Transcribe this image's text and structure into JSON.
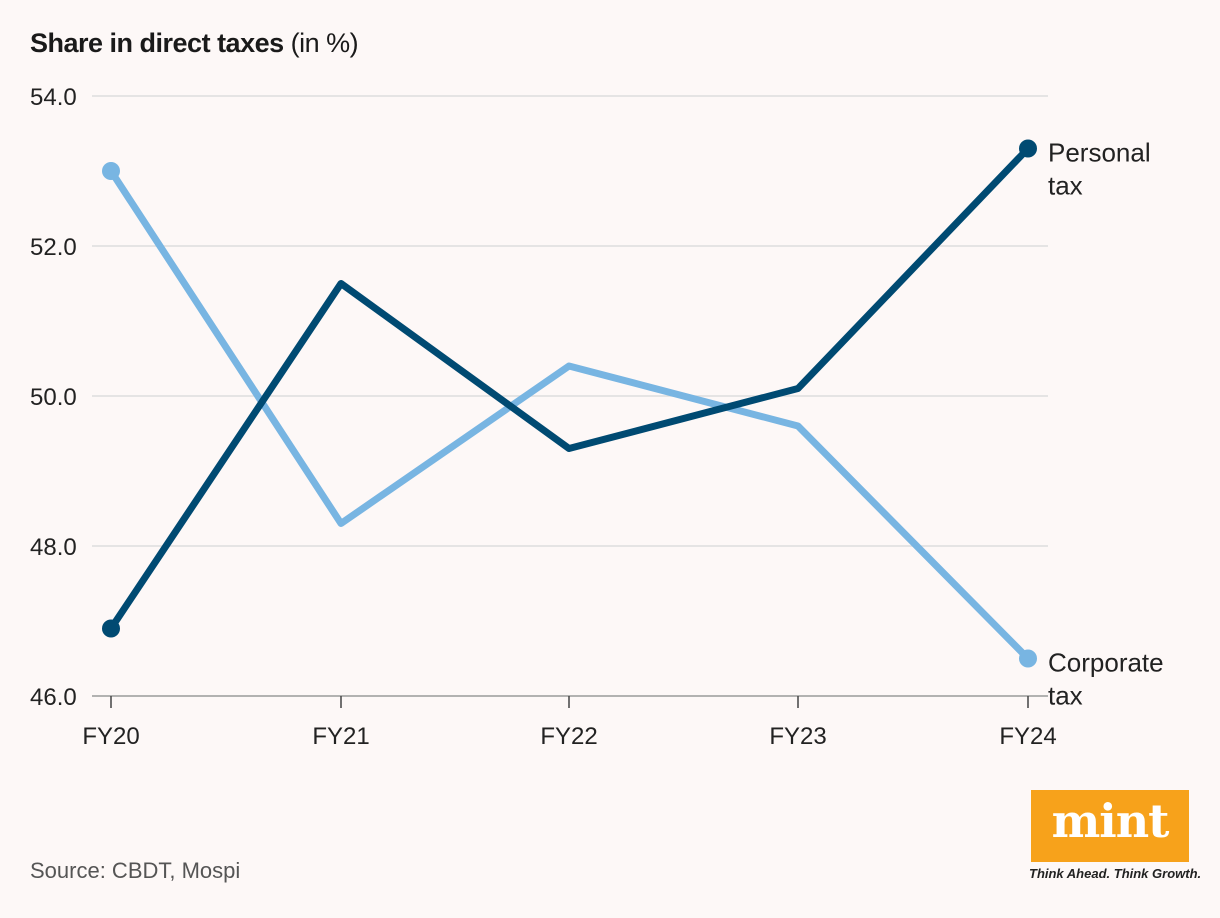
{
  "title": {
    "main": "Share in direct taxes",
    "unit": "(in %)"
  },
  "source": "Source: CBDT, Mospi",
  "brand": {
    "name": "mint",
    "tagline": "Think Ahead. Think Growth.",
    "color": "#f7a21b"
  },
  "chart_data": {
    "type": "line",
    "categories": [
      "FY20",
      "FY21",
      "FY22",
      "FY23",
      "FY24"
    ],
    "series": [
      {
        "name": "Personal tax",
        "label_lines": [
          "Personal",
          "tax"
        ],
        "values": [
          46.9,
          51.5,
          49.3,
          50.1,
          53.3
        ],
        "color": "#004a72"
      },
      {
        "name": "Corporate tax",
        "label_lines": [
          "Corporate",
          "tax"
        ],
        "values": [
          53.0,
          48.3,
          50.4,
          49.6,
          46.5
        ],
        "color": "#78b5e2"
      }
    ],
    "ylim": [
      46.0,
      54.0
    ],
    "yticks": [
      46.0,
      48.0,
      50.0,
      52.0,
      54.0
    ],
    "ytick_labels": [
      "46.0",
      "48.0",
      "50.0",
      "52.0",
      "54.0"
    ],
    "grid": true,
    "legend": "inline-right"
  }
}
